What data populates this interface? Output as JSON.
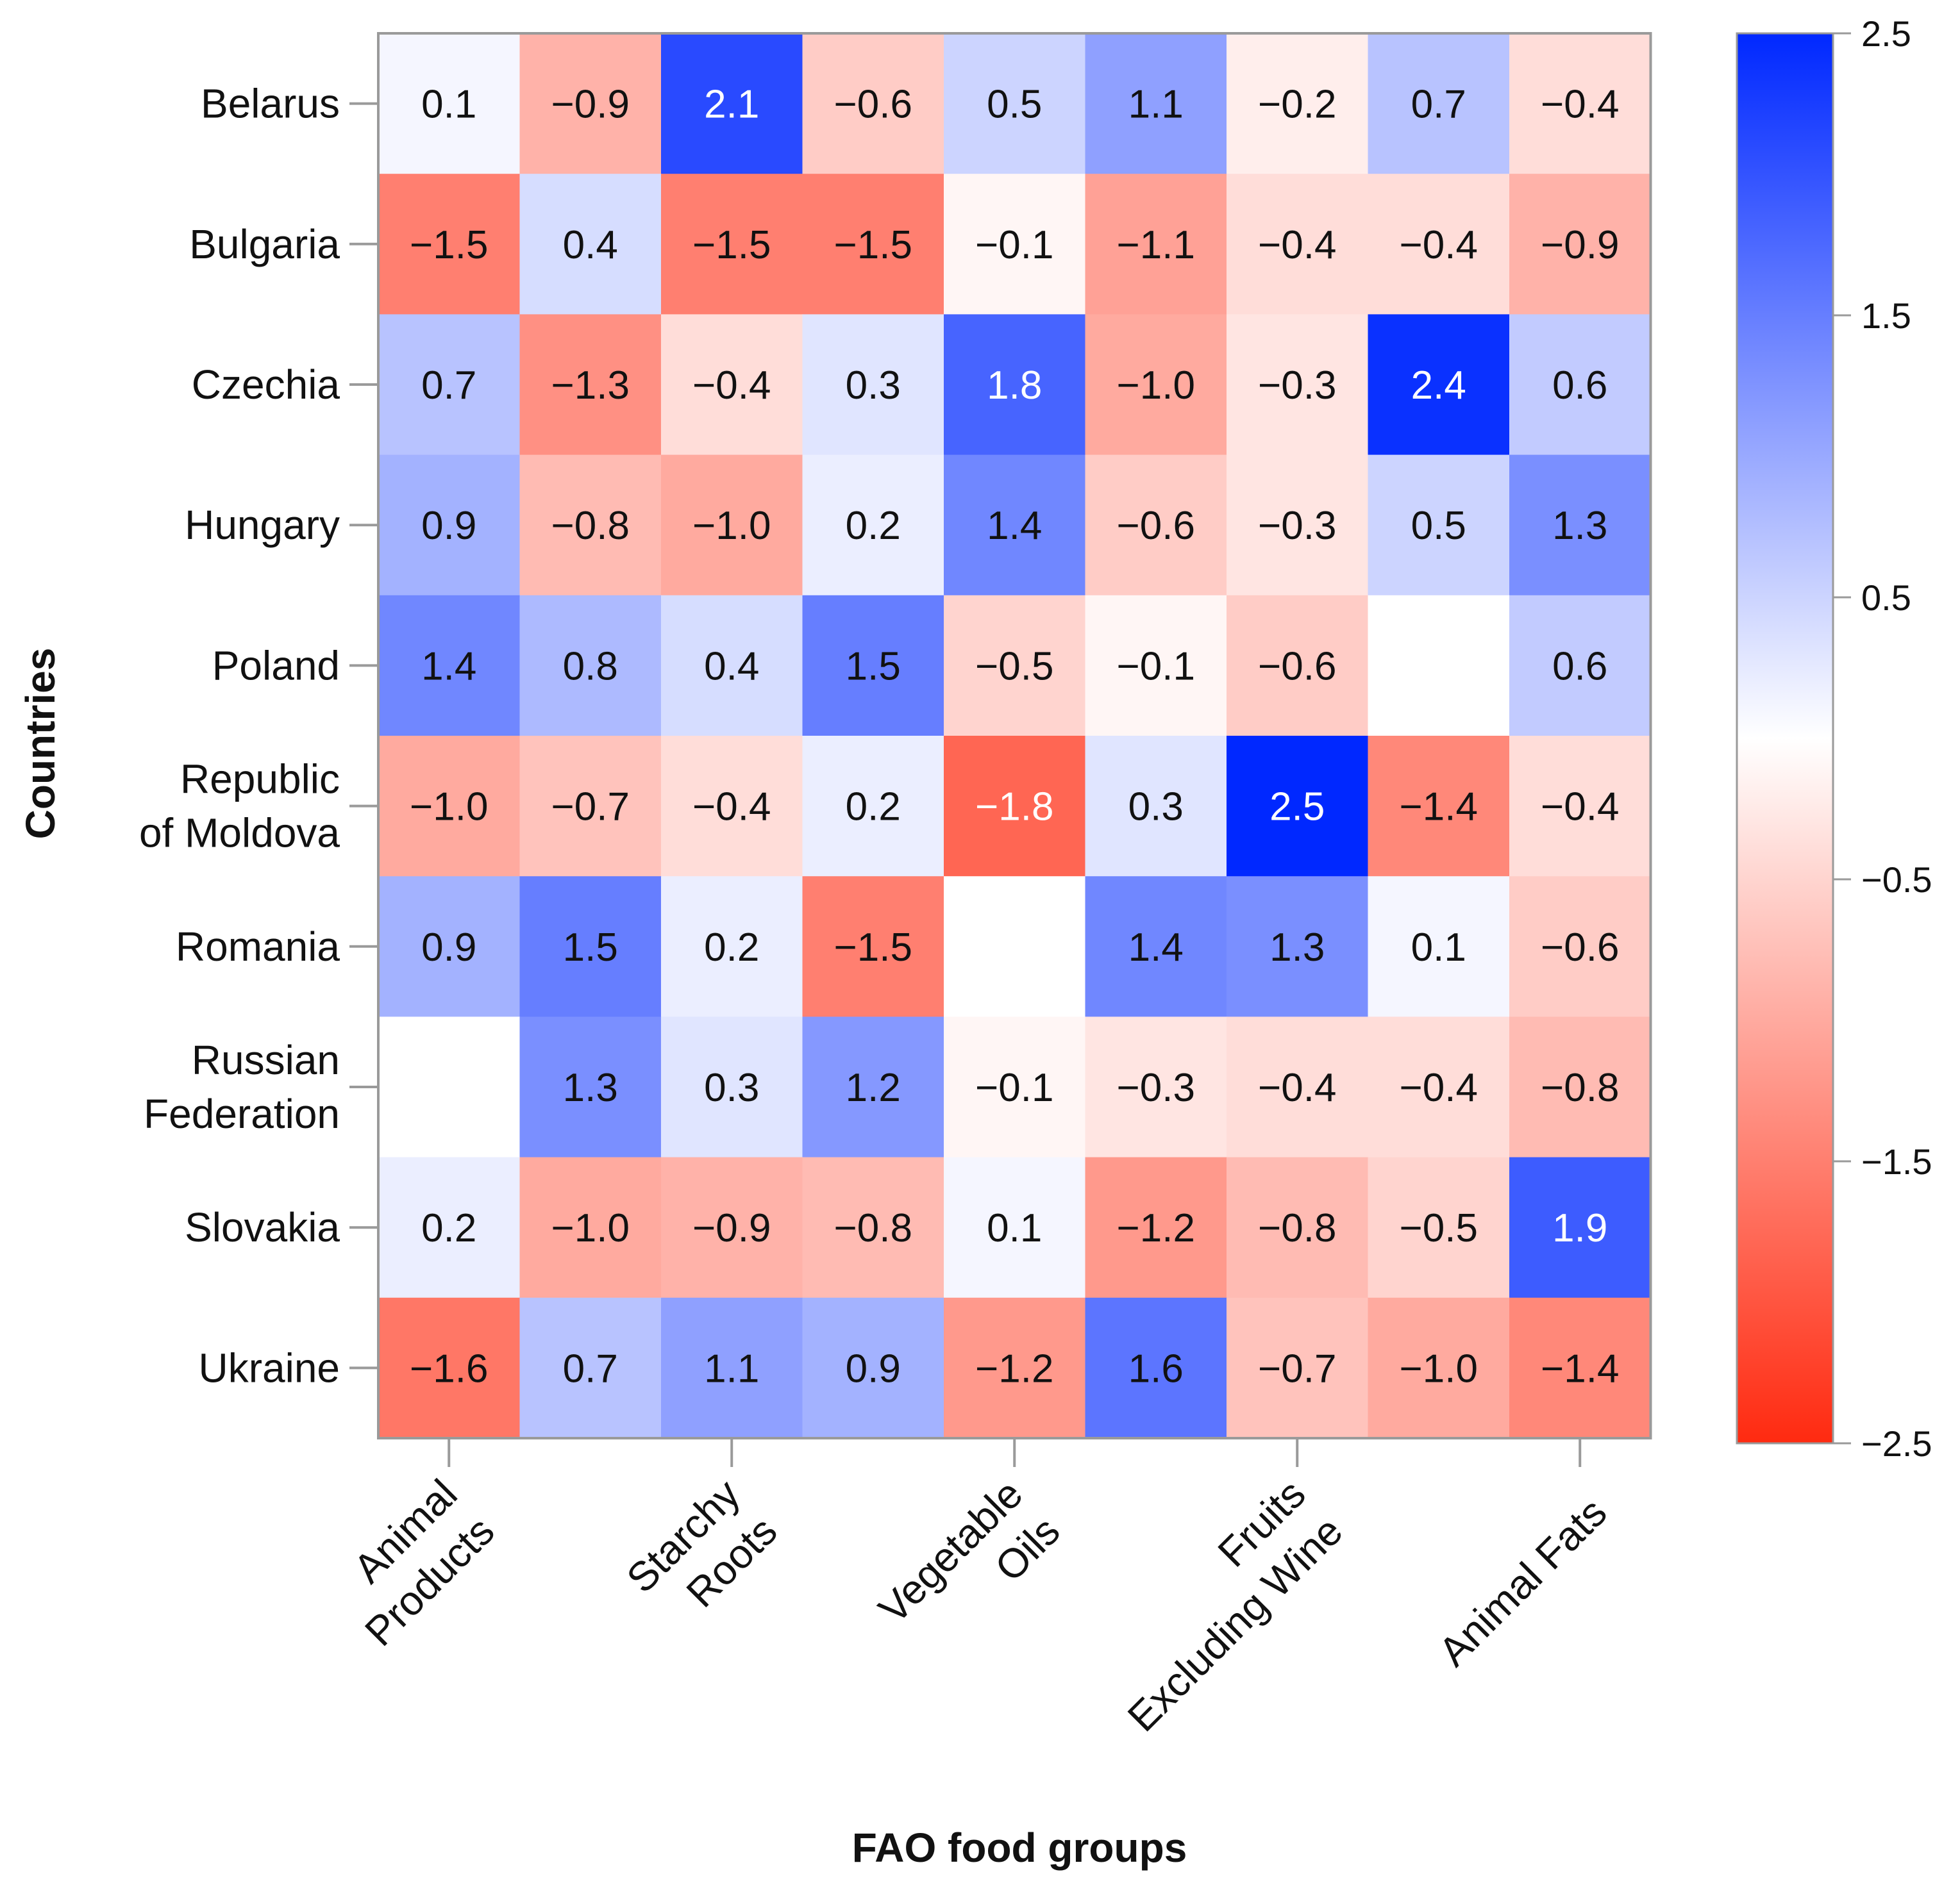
{
  "chart_data": {
    "type": "heatmap",
    "xlabel": "FAO  food groups",
    "ylabel": "Countries",
    "rows": [
      "Belarus",
      "Bulgaria",
      "Czechia",
      "Hungary",
      "Poland",
      "Republic of Moldova",
      "Romania",
      "Russian Federation",
      "Slovakia",
      "Ukraine"
    ],
    "row_label_lines": [
      [
        "Belarus"
      ],
      [
        "Bulgaria"
      ],
      [
        "Czechia"
      ],
      [
        "Hungary"
      ],
      [
        "Poland"
      ],
      [
        "Republic",
        "of Moldova"
      ],
      [
        "Romania"
      ],
      [
        "Russian",
        "Federation"
      ],
      [
        "Slovakia"
      ],
      [
        "Ukraine"
      ]
    ],
    "x_tick_labels": [
      [
        "Animal",
        "Products"
      ],
      [
        "Starchy",
        "Roots"
      ],
      [
        "Vegetable",
        "Oils"
      ],
      [
        "Fruits",
        "Excluding Wine"
      ],
      [
        "Animal Fats"
      ]
    ],
    "x_tick_columns": [
      0,
      2,
      4,
      6,
      8
    ],
    "values": [
      [
        0.1,
        -0.9,
        2.1,
        -0.6,
        0.5,
        1.1,
        -0.2,
        0.7,
        -0.4
      ],
      [
        -1.5,
        0.4,
        -1.5,
        -1.5,
        -0.1,
        -1.1,
        -0.4,
        -0.4,
        -0.9
      ],
      [
        0.7,
        -1.3,
        -0.4,
        0.3,
        1.8,
        -1.0,
        -0.3,
        2.4,
        0.6
      ],
      [
        0.9,
        -0.8,
        -1.0,
        0.2,
        1.4,
        -0.6,
        -0.3,
        0.5,
        1.3
      ],
      [
        1.4,
        0.8,
        0.4,
        1.5,
        -0.5,
        -0.1,
        -0.6,
        null,
        0.6
      ],
      [
        -1.0,
        -0.7,
        -0.4,
        0.2,
        -1.8,
        0.3,
        2.5,
        -1.4,
        -0.4
      ],
      [
        0.9,
        1.5,
        0.2,
        -1.5,
        null,
        1.4,
        1.3,
        0.1,
        -0.6
      ],
      [
        null,
        1.3,
        0.3,
        1.2,
        -0.1,
        -0.3,
        -0.4,
        -0.4,
        -0.8
      ],
      [
        0.2,
        -1.0,
        -0.9,
        -0.8,
        0.1,
        -1.2,
        -0.8,
        -0.5,
        1.9
      ],
      [
        -1.6,
        0.7,
        1.1,
        0.9,
        -1.2,
        1.6,
        -0.7,
        -1.0,
        -1.4
      ]
    ],
    "colorbar": {
      "range": [
        -2.5,
        2.5
      ],
      "ticks": [
        2.5,
        1.5,
        0.5,
        -0.5,
        -1.5,
        -2.5
      ],
      "tick_labels": [
        "2.5",
        "1.5",
        "0.5",
        "−0.5",
        "−1.5",
        "−2.5"
      ],
      "low_color": "#ff2a10",
      "mid_color": "#ffffff",
      "high_color": "#0028ff"
    },
    "grid": false,
    "legend": "right"
  }
}
